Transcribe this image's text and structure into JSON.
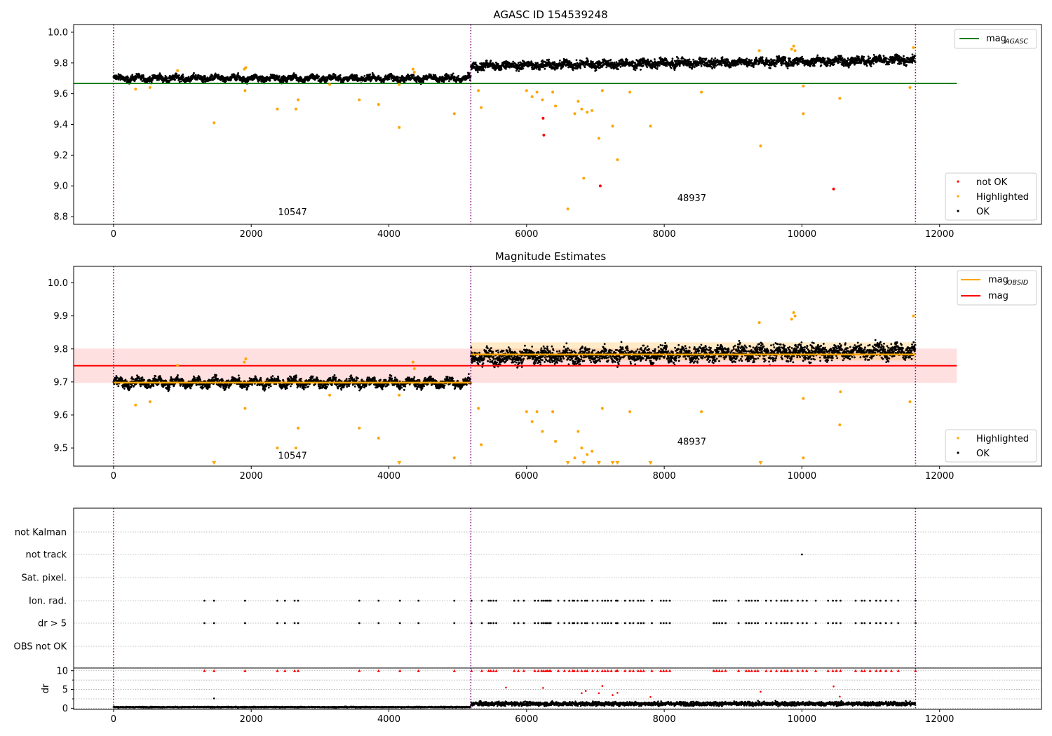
{
  "chart_data": [
    {
      "type": "scatter",
      "title": "AGASC ID 154539248",
      "xlim": [
        -580,
        13480
      ],
      "ylim": [
        8.75,
        10.05
      ],
      "xticks": [
        0,
        2000,
        4000,
        6000,
        8000,
        10000,
        12000
      ],
      "yticks": [
        8.8,
        9.0,
        9.2,
        9.4,
        9.6,
        9.8,
        10.0
      ],
      "obs_boundaries": [
        0,
        5190,
        11650
      ],
      "obsid_labels": [
        {
          "text": "10547",
          "x": 2600,
          "y": 8.81
        },
        {
          "text": "48937",
          "x": 8400,
          "y": 8.9
        }
      ],
      "hlines": [
        {
          "name": "mag_AGASC",
          "y": 9.667,
          "x": [
            -580,
            12250
          ],
          "color": "#008000"
        }
      ],
      "ok_bands": [
        {
          "x": [
            0,
            5190
          ],
          "center": 9.7,
          "spread": 0.018
        },
        {
          "x": [
            5190,
            11650
          ],
          "center": 9.78,
          "spread": 0.025,
          "drift": 0.04
        }
      ],
      "highlighted_points": [
        [
          1460,
          9.41
        ],
        [
          2380,
          9.5
        ],
        [
          2650,
          9.5
        ],
        [
          2680,
          9.56
        ],
        [
          3570,
          9.56
        ],
        [
          3850,
          9.53
        ],
        [
          4150,
          9.38
        ],
        [
          4950,
          9.47
        ],
        [
          320,
          9.63
        ],
        [
          530,
          9.64
        ],
        [
          1910,
          9.62
        ],
        [
          5300,
          9.62
        ],
        [
          5340,
          9.51
        ],
        [
          6000,
          9.62
        ],
        [
          6080,
          9.58
        ],
        [
          6150,
          9.61
        ],
        [
          6230,
          9.56
        ],
        [
          6380,
          9.61
        ],
        [
          6420,
          9.52
        ],
        [
          6600,
          8.85
        ],
        [
          6700,
          9.47
        ],
        [
          6750,
          9.55
        ],
        [
          6800,
          9.5
        ],
        [
          6830,
          9.05
        ],
        [
          6880,
          9.48
        ],
        [
          6950,
          9.49
        ],
        [
          7050,
          9.31
        ],
        [
          7100,
          9.62
        ],
        [
          7250,
          9.39
        ],
        [
          7320,
          9.17
        ],
        [
          7500,
          9.61
        ],
        [
          7800,
          9.39
        ],
        [
          8540,
          9.61
        ],
        [
          9400,
          9.26
        ],
        [
          10020,
          9.47
        ],
        [
          10020,
          9.65
        ],
        [
          10550,
          9.57
        ],
        [
          11570,
          9.64
        ],
        [
          9880,
          9.91
        ],
        [
          9850,
          9.89
        ],
        [
          9900,
          9.88
        ],
        [
          9380,
          9.88
        ],
        [
          11620,
          9.9
        ],
        [
          930,
          9.75
        ],
        [
          1900,
          9.76
        ],
        [
          1920,
          9.77
        ],
        [
          4350,
          9.76
        ],
        [
          4370,
          9.74
        ],
        [
          3140,
          9.66
        ],
        [
          4150,
          9.66
        ]
      ],
      "notok_points": [
        [
          6240,
          9.44
        ],
        [
          6250,
          9.33
        ],
        [
          7070,
          9.0
        ],
        [
          10460,
          8.98
        ]
      ],
      "legend_upper": [
        {
          "label": "mag",
          "sub": "AGASC",
          "color": "#008000"
        }
      ],
      "legend_lower": [
        {
          "label": "not OK",
          "color": "#ff0000"
        },
        {
          "label": "Highlighted",
          "color": "#ffa500"
        },
        {
          "label": "OK",
          "color": "#000000"
        }
      ]
    },
    {
      "type": "scatter",
      "title": "Magnitude Estimates",
      "xlim": [
        -580,
        13480
      ],
      "ylim": [
        9.445,
        10.05
      ],
      "xticks": [
        0,
        2000,
        4000,
        6000,
        8000,
        10000,
        12000
      ],
      "yticks": [
        9.5,
        9.6,
        9.7,
        9.8,
        9.9,
        10.0
      ],
      "obs_boundaries": [
        0,
        5190,
        11650
      ],
      "obsid_labels": [
        {
          "text": "10547",
          "x": 2600,
          "y": 9.467
        },
        {
          "text": "48937",
          "x": 8400,
          "y": 9.51
        }
      ],
      "mag_line": {
        "y": 9.749,
        "band": [
          9.697,
          9.801
        ],
        "x": [
          -580,
          12250
        ],
        "color": "#ff0000"
      },
      "obsid_mags": [
        {
          "x": [
            0,
            5190
          ],
          "y": 9.698,
          "band": [
            9.69,
            9.706
          ]
        },
        {
          "x": [
            5190,
            11650
          ],
          "y": 9.783,
          "band": [
            9.765,
            9.82
          ]
        }
      ],
      "highlighted_points": [
        [
          320,
          9.63
        ],
        [
          530,
          9.64
        ],
        [
          930,
          9.75
        ],
        [
          1900,
          9.76
        ],
        [
          1920,
          9.77
        ],
        [
          1910,
          9.62
        ],
        [
          2380,
          9.5
        ],
        [
          2650,
          9.5
        ],
        [
          2680,
          9.56
        ],
        [
          3570,
          9.56
        ],
        [
          3850,
          9.53
        ],
        [
          4950,
          9.47
        ],
        [
          4350,
          9.76
        ],
        [
          4370,
          9.74
        ],
        [
          3140,
          9.66
        ],
        [
          4150,
          9.66
        ],
        [
          5300,
          9.62
        ],
        [
          5340,
          9.51
        ],
        [
          6000,
          9.61
        ],
        [
          6080,
          9.58
        ],
        [
          6150,
          9.61
        ],
        [
          6230,
          9.55
        ],
        [
          6380,
          9.61
        ],
        [
          6420,
          9.52
        ],
        [
          6700,
          9.47
        ],
        [
          6750,
          9.55
        ],
        [
          6800,
          9.5
        ],
        [
          6880,
          9.48
        ],
        [
          6950,
          9.49
        ],
        [
          7100,
          9.62
        ],
        [
          7500,
          9.61
        ],
        [
          8540,
          9.61
        ],
        [
          10020,
          9.47
        ],
        [
          10020,
          9.65
        ],
        [
          10550,
          9.57
        ],
        [
          11570,
          9.64
        ],
        [
          9380,
          9.88
        ],
        [
          9850,
          9.89
        ],
        [
          9880,
          9.91
        ],
        [
          9900,
          9.9
        ],
        [
          11620,
          9.9
        ],
        [
          10560,
          9.67
        ]
      ],
      "offscale_points_x": [
        1460,
        4150,
        6600,
        6830,
        7050,
        7250,
        7320,
        7800,
        9400
      ],
      "legend_upper": [
        {
          "label": "mag",
          "sub": "OBSID",
          "color": "#ffa500"
        },
        {
          "label": "mag",
          "sub": "",
          "color": "#ff0000"
        }
      ],
      "legend_lower": [
        {
          "label": "Highlighted",
          "color": "#ffa500"
        },
        {
          "label": "OK",
          "color": "#000000"
        }
      ]
    },
    {
      "type": "scatter",
      "title": "",
      "xlim": [
        -580,
        13480
      ],
      "xticks": [
        0,
        2000,
        4000,
        6000,
        8000,
        10000,
        12000
      ],
      "obs_boundaries": [
        0,
        5190,
        11650
      ],
      "flag_rows": [
        "not Kalman",
        "not track",
        "Sat. pixel.",
        "Ion. rad.",
        "dr > 5",
        "OBS not OK"
      ],
      "not_track_points_x": [
        10000
      ],
      "flag_points_x": [
        1320,
        1460,
        1910,
        2380,
        2490,
        2630,
        2680,
        3570,
        3850,
        4160,
        4430,
        4950,
        5200,
        5350,
        5450,
        5480,
        5520,
        5560,
        5820,
        5880,
        5960,
        6120,
        6170,
        6220,
        6250,
        6280,
        6300,
        6330,
        6350,
        6460,
        6550,
        6620,
        6670,
        6690,
        6740,
        6800,
        6850,
        6880,
        6960,
        7030,
        7100,
        7140,
        7180,
        7230,
        7300,
        7320,
        7430,
        7500,
        7550,
        7620,
        7660,
        7700,
        7820,
        7950,
        7990,
        8030,
        8080,
        8720,
        8760,
        8800,
        8840,
        8890,
        9080,
        9190,
        9230,
        9270,
        9320,
        9360,
        9480,
        9550,
        9630,
        9700,
        9750,
        9790,
        9850,
        9940,
        10010,
        10070,
        10200,
        10380,
        10450,
        10500,
        10560,
        10780,
        10870,
        10910,
        10990,
        11080,
        11140,
        11220,
        11300,
        11400,
        11650
      ],
      "dr_yticks": [
        0,
        5,
        10
      ],
      "dr_ylim": [
        -0.3,
        10.7
      ],
      "dr_ylabel": "dr",
      "dr_extra_points": [
        [
          1460,
          2.6
        ],
        [
          5700,
          5.5
        ],
        [
          6240,
          5.4
        ],
        [
          6800,
          4.0
        ],
        [
          6860,
          4.6
        ],
        [
          7050,
          4.0
        ],
        [
          7100,
          5.9
        ],
        [
          7250,
          3.5
        ],
        [
          7320,
          4.1
        ],
        [
          7800,
          3.0
        ],
        [
          9400,
          4.4
        ],
        [
          10460,
          5.8
        ],
        [
          10550,
          3.1
        ]
      ],
      "dr_baseline": [
        {
          "x": [
            0,
            5190
          ],
          "level": 0.3
        },
        {
          "x": [
            5190,
            11650
          ],
          "level": 1.2
        }
      ]
    }
  ]
}
